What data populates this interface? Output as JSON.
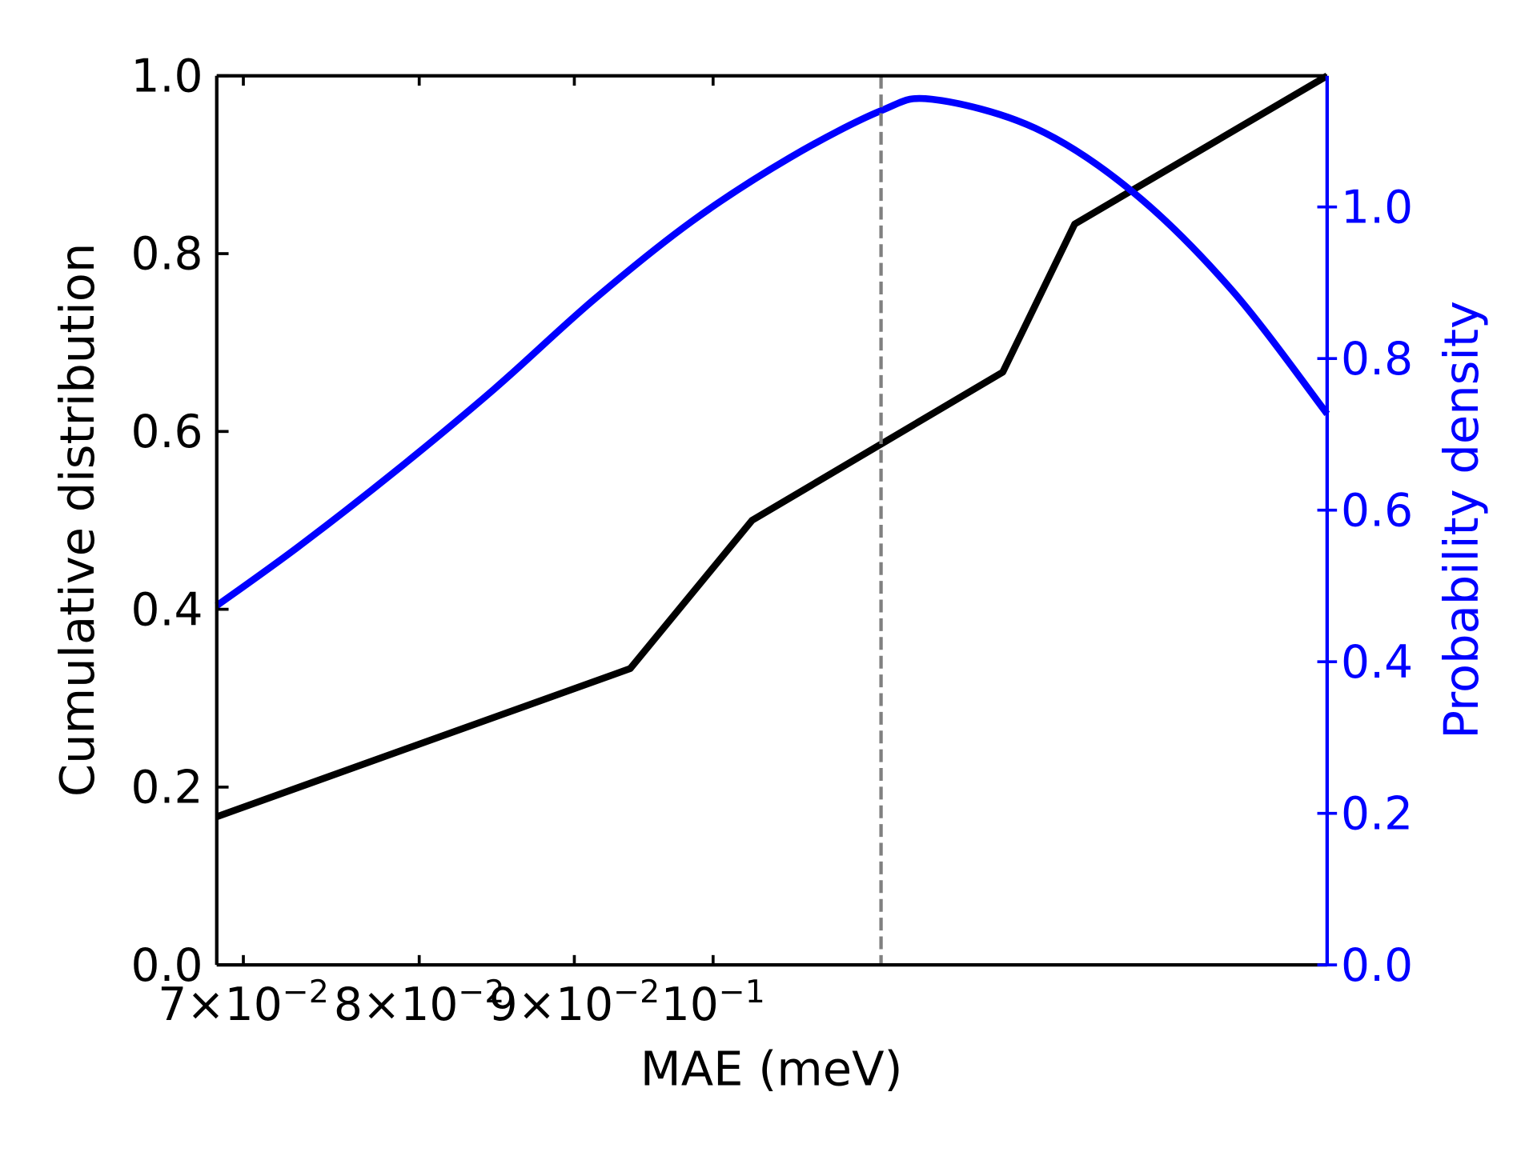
{
  "chart_data": {
    "type": "line",
    "xlabel": "MAE (meV)",
    "ylabel_left": "Cumulative distribution",
    "ylabel_right": "Probability density",
    "xscale": "log",
    "xlim": [
      0.0686,
      0.1594
    ],
    "ylim_left": [
      0.0,
      1.0
    ],
    "ylim_right": [
      0.0,
      1.173
    ],
    "grid": false,
    "x_ticks": [
      {
        "value": 0.07,
        "mant": "7×10",
        "exp": "−2"
      },
      {
        "value": 0.08,
        "mant": "8×10",
        "exp": "−2"
      },
      {
        "value": 0.09,
        "mant": "9×10",
        "exp": "−2"
      },
      {
        "value": 0.1,
        "mant": "10",
        "exp": "−1"
      }
    ],
    "y_ticks_left": [
      "0.0",
      "0.2",
      "0.4",
      "0.6",
      "0.8",
      "1.0"
    ],
    "y_ticks_right": [
      "0.0",
      "0.2",
      "0.4",
      "0.6",
      "0.8",
      "1.0"
    ],
    "series": [
      {
        "axis": "left",
        "color": "#000000",
        "x": [
          0.0686,
          0.0939,
          0.103,
          0.1246,
          0.1316,
          0.1594
        ],
        "y": [
          0.1667,
          0.3333,
          0.5,
          0.6667,
          0.8333,
          1.0
        ]
      },
      {
        "axis": "right",
        "color": "#0000ff",
        "x": [
          0.0686,
          0.073,
          0.0786,
          0.0847,
          0.0913,
          0.0984,
          0.106,
          0.1136,
          0.1181,
          0.1277,
          0.1376,
          0.1483,
          0.1594
        ],
        "y": [
          0.474,
          0.552,
          0.652,
          0.76,
          0.877,
          0.981,
          1.065,
          1.127,
          1.142,
          1.104,
          1.019,
          0.89,
          0.727
        ]
      }
    ],
    "vline": {
      "x": 0.1136,
      "color": "#808080",
      "style": "dashed"
    },
    "right_axis_color": "#0000ff"
  }
}
